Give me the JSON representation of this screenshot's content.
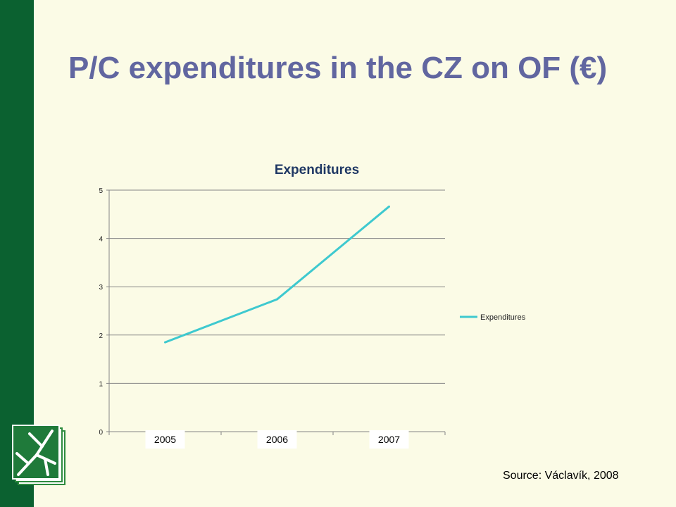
{
  "slide": {
    "title": "P/C expenditures in the CZ on OF (€)",
    "source": "Source: Václavík, 2008"
  },
  "colors": {
    "sidebar": "#0b6130",
    "title": "#6166a0",
    "line": "#3ec9cf",
    "background": "#fbfbe6"
  },
  "icons": [
    "book-tree-logo-icon"
  ],
  "chart_data": {
    "type": "line",
    "title": "Expenditures",
    "categories": [
      "2005",
      "2006",
      "2007"
    ],
    "series": [
      {
        "name": "Expenditures",
        "values": [
          1.85,
          2.74,
          4.66
        ]
      }
    ],
    "ylim": [
      0,
      5
    ],
    "yticks": [
      0,
      1,
      2,
      3,
      4,
      5
    ],
    "xlabel": "",
    "ylabel": "",
    "grid": true,
    "legend": "right"
  }
}
